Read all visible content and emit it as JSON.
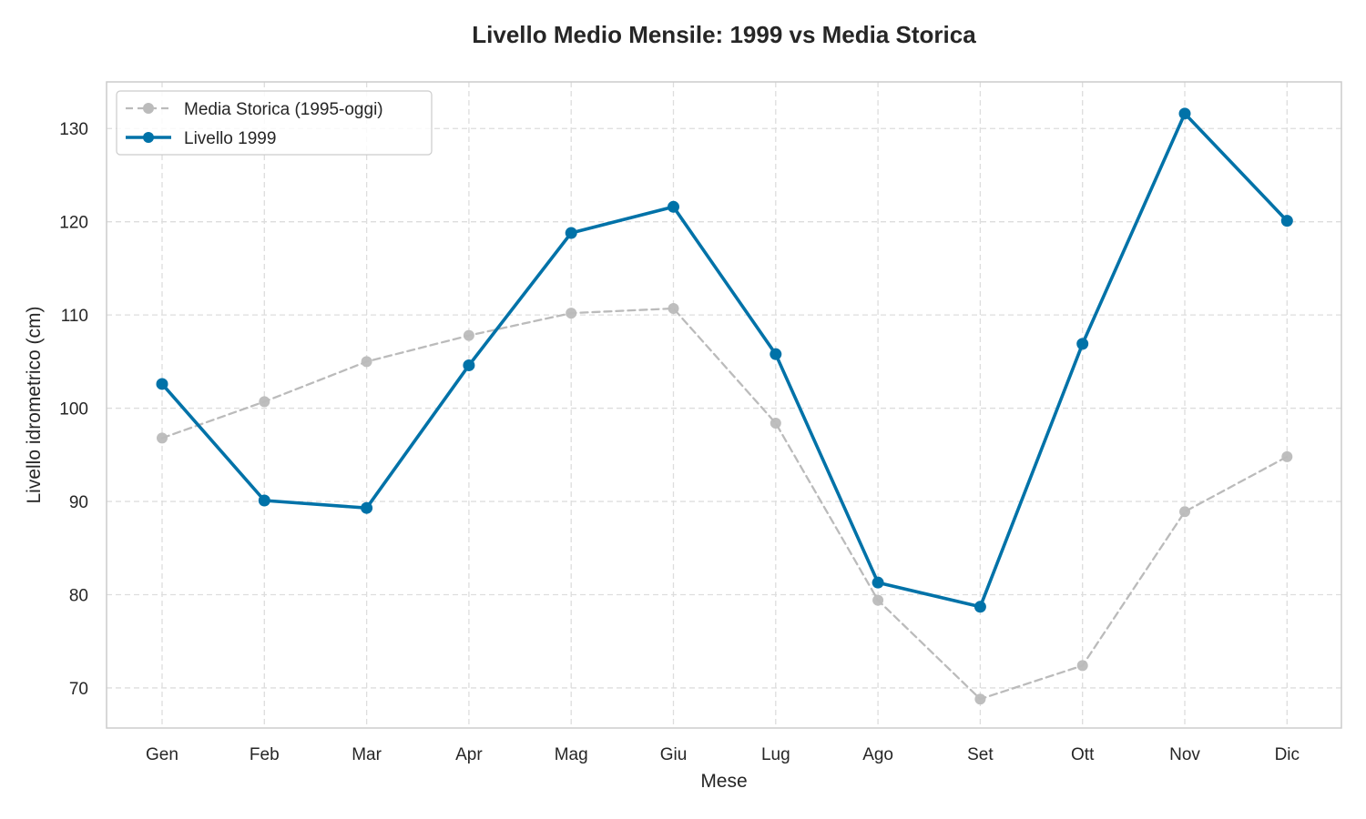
{
  "chart_data": {
    "type": "line",
    "title": "Livello Medio Mensile: 1999 vs Media Storica",
    "xlabel": "Mese",
    "ylabel": "Livello idrometrico (cm)",
    "categories": [
      "Gen",
      "Feb",
      "Mar",
      "Apr",
      "Mag",
      "Giu",
      "Lug",
      "Ago",
      "Set",
      "Ott",
      "Nov",
      "Dic"
    ],
    "ylim": [
      65.7,
      135.0
    ],
    "yticks": [
      70,
      80,
      90,
      100,
      110,
      120,
      130
    ],
    "grid": true,
    "legend_position": "top-left",
    "series": [
      {
        "name": "Media Storica (1995-oggi)",
        "values": [
          96.8,
          100.7,
          105.0,
          107.8,
          110.2,
          110.7,
          98.4,
          79.4,
          68.8,
          72.4,
          88.9,
          94.8
        ],
        "color": "#bbbbbb",
        "style": "dashed"
      },
      {
        "name": "Livello 1999",
        "values": [
          102.6,
          90.1,
          89.3,
          104.6,
          118.8,
          121.6,
          105.8,
          81.3,
          78.7,
          106.9,
          131.6,
          120.1
        ],
        "color": "#0072a8",
        "style": "solid"
      }
    ]
  }
}
